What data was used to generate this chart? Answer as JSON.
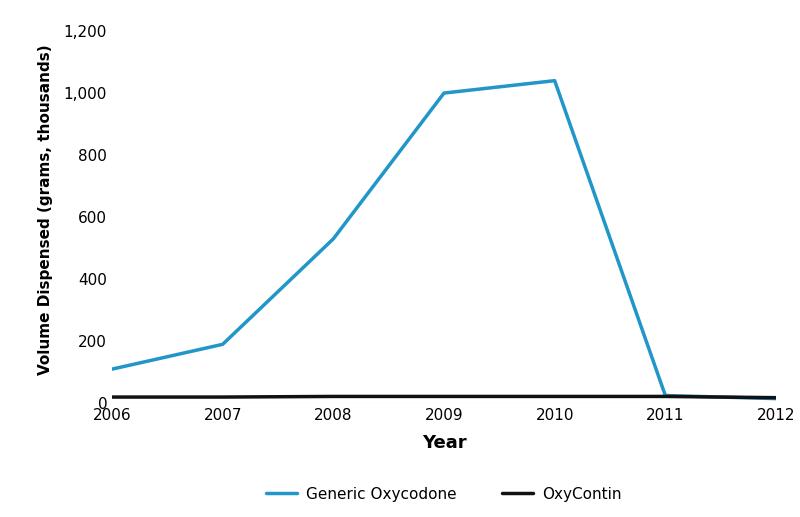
{
  "title": "",
  "xlabel": "Year",
  "ylabel": "Volume Dispensed (grams, thousands)",
  "years": [
    2006,
    2007,
    2008,
    2009,
    2010,
    2011,
    2012
  ],
  "generic_oxycodone": [
    110,
    190,
    530,
    1000,
    1040,
    25,
    15
  ],
  "oxycontin": [
    20,
    20,
    22,
    22,
    22,
    22,
    18
  ],
  "generic_color": "#2196C8",
  "oxycontin_color": "#111111",
  "line_width": 2.5,
  "ylim": [
    0,
    1250
  ],
  "yticks": [
    0,
    200,
    400,
    600,
    800,
    1000,
    1200
  ],
  "background_color": "#ffffff",
  "legend_labels": [
    "Generic Oxycodone",
    "OxyContin"
  ],
  "xlabel_fontsize": 13,
  "ylabel_fontsize": 11,
  "tick_fontsize": 11
}
